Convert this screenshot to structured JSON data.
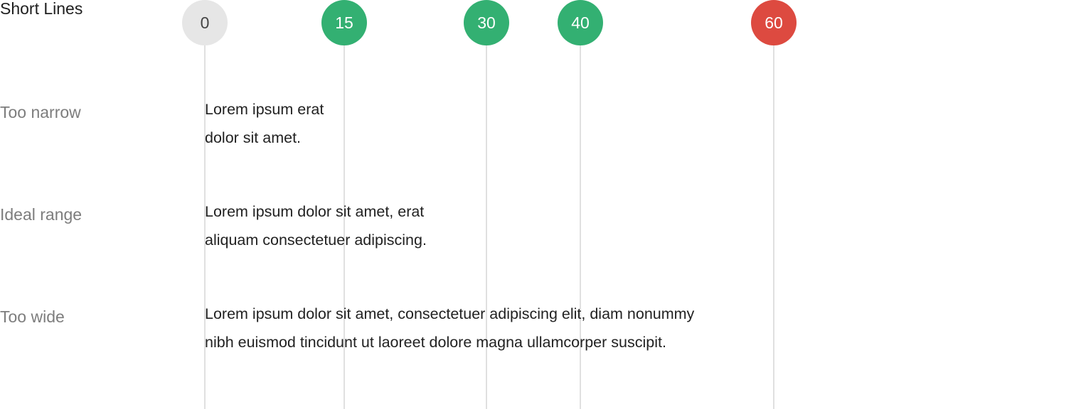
{
  "title": "Short Lines",
  "colors": {
    "neutral": "#e6e6e6",
    "neutral_text": "#444444",
    "ideal": "#33b072",
    "bad": "#dd4a40"
  },
  "markers": [
    {
      "label": "0",
      "status": "neutral"
    },
    {
      "label": "15",
      "status": "ideal"
    },
    {
      "label": "30",
      "status": "ideal"
    },
    {
      "label": "40",
      "status": "ideal"
    },
    {
      "label": "60",
      "status": "bad"
    }
  ],
  "rows": [
    {
      "label": "Too narrow",
      "lines": [
        "Lorem ipsum erat",
        "dolor sit amet."
      ]
    },
    {
      "label": "Ideal range",
      "lines": [
        "Lorem ipsum dolor sit amet, erat",
        "aliquam  consectetuer adipiscing."
      ]
    },
    {
      "label": "Too wide",
      "lines": [
        "Lorem ipsum dolor sit amet, consectetuer adipiscing elit, diam nonummy",
        "nibh euismod tincidunt ut laoreet dolore magna  ullamcorper suscipit."
      ]
    }
  ]
}
